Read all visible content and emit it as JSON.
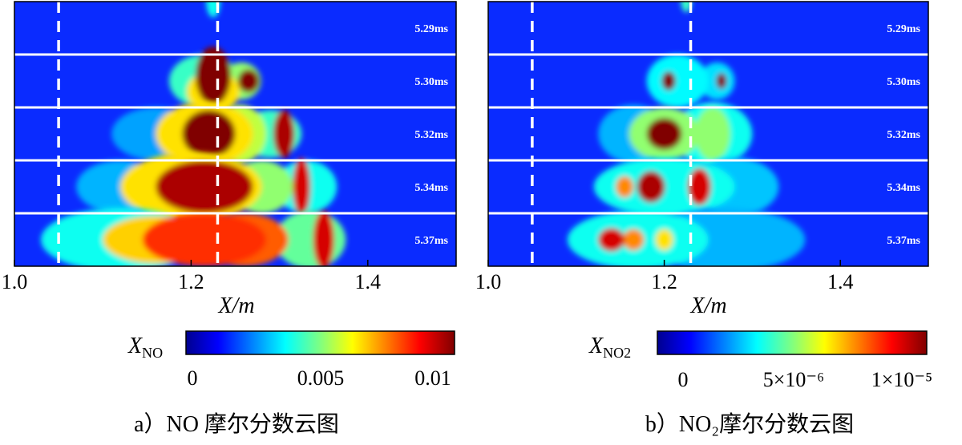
{
  "figure": {
    "caption_a": "a）NO 摩尔分数云图"
  },
  "chart_data": [
    {
      "type": "heatmap",
      "panel": "a",
      "species": "NO",
      "caption": "a）NO 摩尔分数云图",
      "xlabel": "X/m",
      "xlim": [
        1.0,
        1.5
      ],
      "x_ticks": [
        "1.0",
        "1.2",
        "1.4"
      ],
      "x_tick_values": [
        1.0,
        1.2,
        1.4
      ],
      "colorbar": {
        "label": "X_NO",
        "label_main": "X",
        "label_sub": "NO",
        "min": 0,
        "max": 0.01,
        "ticks": [
          "0",
          "0.005",
          "0.01"
        ],
        "tick_values": [
          0,
          0.005,
          0.01
        ]
      },
      "time_labels": [
        "5.29ms",
        "5.30ms",
        "5.32ms",
        "5.34ms",
        "5.37ms"
      ],
      "marker_lines_x": [
        1.05,
        1.23
      ],
      "blobs": [
        [
          {
            "x": 1.225,
            "y": 0.0,
            "rx": 0.008,
            "ry": 0.3,
            "v": 0.3
          }
        ],
        [
          {
            "x": 1.225,
            "y": 0.4,
            "rx": 0.02,
            "ry": 0.55,
            "v": 1.0
          },
          {
            "x": 1.225,
            "y": 0.7,
            "rx": 0.03,
            "ry": 0.4,
            "v": 0.6
          },
          {
            "x": 1.265,
            "y": 0.5,
            "rx": 0.012,
            "ry": 0.22,
            "v": 1.0
          },
          {
            "x": 1.257,
            "y": 0.5,
            "rx": 0.022,
            "ry": 0.35,
            "v": 0.45
          },
          {
            "x": 1.215,
            "y": 0.5,
            "rx": 0.04,
            "ry": 0.5,
            "v": 0.35
          }
        ],
        [
          {
            "x": 1.22,
            "y": 0.5,
            "rx": 0.03,
            "ry": 0.45,
            "v": 1.0
          },
          {
            "x": 1.215,
            "y": 0.5,
            "rx": 0.055,
            "ry": 0.6,
            "v": 0.6
          },
          {
            "x": 1.255,
            "y": 0.5,
            "rx": 0.03,
            "ry": 0.55,
            "v": 0.5
          },
          {
            "x": 1.305,
            "y": 0.5,
            "rx": 0.012,
            "ry": 0.45,
            "v": 0.95
          },
          {
            "x": 1.29,
            "y": 0.5,
            "rx": 0.035,
            "ry": 0.45,
            "v": 0.35
          },
          {
            "x": 1.16,
            "y": 0.5,
            "rx": 0.05,
            "ry": 0.5,
            "v": 0.18
          }
        ],
        [
          {
            "x": 1.215,
            "y": 0.5,
            "rx": 0.055,
            "ry": 0.5,
            "v": 0.95
          },
          {
            "x": 1.2,
            "y": 0.5,
            "rx": 0.08,
            "ry": 0.65,
            "v": 0.6
          },
          {
            "x": 1.28,
            "y": 0.5,
            "rx": 0.035,
            "ry": 0.5,
            "v": 0.45
          },
          {
            "x": 1.325,
            "y": 0.5,
            "rx": 0.01,
            "ry": 0.55,
            "v": 0.9
          },
          {
            "x": 1.33,
            "y": 0.5,
            "rx": 0.035,
            "ry": 0.5,
            "v": 0.3
          },
          {
            "x": 1.12,
            "y": 0.5,
            "rx": 0.05,
            "ry": 0.5,
            "v": 0.2
          }
        ],
        [
          {
            "x": 1.215,
            "y": 0.5,
            "rx": 0.07,
            "ry": 0.5,
            "v": 0.8
          },
          {
            "x": 1.16,
            "y": 0.5,
            "rx": 0.06,
            "ry": 0.45,
            "v": 0.62
          },
          {
            "x": 1.26,
            "y": 0.5,
            "rx": 0.05,
            "ry": 0.5,
            "v": 0.75
          },
          {
            "x": 1.35,
            "y": 0.5,
            "rx": 0.012,
            "ry": 0.55,
            "v": 0.9
          },
          {
            "x": 1.335,
            "y": 0.5,
            "rx": 0.04,
            "ry": 0.55,
            "v": 0.4
          },
          {
            "x": 1.12,
            "y": 0.5,
            "rx": 0.09,
            "ry": 0.6,
            "v": 0.3
          }
        ]
      ]
    },
    {
      "type": "heatmap",
      "panel": "b",
      "species": "NO2",
      "caption": "b）NO₂摩尔分数云图",
      "xlabel": "X/m",
      "xlim": [
        1.0,
        1.5
      ],
      "x_ticks": [
        "1.0",
        "1.2",
        "1.4"
      ],
      "x_tick_values": [
        1.0,
        1.2,
        1.4
      ],
      "colorbar": {
        "label": "X_NO2",
        "label_main": "X",
        "label_sub": "NO2",
        "min": 0,
        "max": 1e-05,
        "ticks": [
          "0",
          "5×10⁻⁶",
          "1×10⁻⁵"
        ],
        "tick_values": [
          0,
          5e-06,
          1e-05
        ]
      },
      "time_labels": [
        "5.29ms",
        "5.30ms",
        "5.32ms",
        "5.34ms",
        "5.37ms"
      ],
      "marker_lines_x": [
        1.05,
        1.23
      ],
      "blobs": [
        [
          {
            "x": 1.225,
            "y": 0.0,
            "rx": 0.006,
            "ry": 0.2,
            "v": 0.35
          }
        ],
        [
          {
            "x": 1.205,
            "y": 0.5,
            "rx": 0.008,
            "ry": 0.18,
            "v": 1.0
          },
          {
            "x": 1.265,
            "y": 0.5,
            "rx": 0.006,
            "ry": 0.15,
            "v": 1.0
          },
          {
            "x": 1.215,
            "y": 0.5,
            "rx": 0.035,
            "ry": 0.5,
            "v": 0.28
          },
          {
            "x": 1.26,
            "y": 0.5,
            "rx": 0.02,
            "ry": 0.35,
            "v": 0.25
          }
        ],
        [
          {
            "x": 1.2,
            "y": 0.5,
            "rx": 0.02,
            "ry": 0.3,
            "v": 1.0
          },
          {
            "x": 1.2,
            "y": 0.5,
            "rx": 0.04,
            "ry": 0.5,
            "v": 0.45
          },
          {
            "x": 1.255,
            "y": 0.5,
            "rx": 0.02,
            "ry": 0.5,
            "v": 0.45
          },
          {
            "x": 1.255,
            "y": 0.5,
            "rx": 0.045,
            "ry": 0.6,
            "v": 0.3
          },
          {
            "x": 1.165,
            "y": 0.5,
            "rx": 0.04,
            "ry": 0.55,
            "v": 0.2
          }
        ],
        [
          {
            "x": 1.185,
            "y": 0.5,
            "rx": 0.016,
            "ry": 0.3,
            "v": 0.95
          },
          {
            "x": 1.155,
            "y": 0.5,
            "rx": 0.01,
            "ry": 0.2,
            "v": 0.7
          },
          {
            "x": 1.24,
            "y": 0.5,
            "rx": 0.013,
            "ry": 0.35,
            "v": 0.9
          },
          {
            "x": 1.2,
            "y": 0.5,
            "rx": 0.08,
            "ry": 0.55,
            "v": 0.3
          },
          {
            "x": 1.28,
            "y": 0.5,
            "rx": 0.05,
            "ry": 0.55,
            "v": 0.22
          }
        ],
        [
          {
            "x": 1.14,
            "y": 0.5,
            "rx": 0.015,
            "ry": 0.22,
            "v": 0.9
          },
          {
            "x": 1.165,
            "y": 0.5,
            "rx": 0.012,
            "ry": 0.2,
            "v": 0.7
          },
          {
            "x": 1.2,
            "y": 0.5,
            "rx": 0.01,
            "ry": 0.2,
            "v": 0.6
          },
          {
            "x": 1.17,
            "y": 0.5,
            "rx": 0.08,
            "ry": 0.55,
            "v": 0.3
          },
          {
            "x": 1.27,
            "y": 0.5,
            "rx": 0.09,
            "ry": 0.6,
            "v": 0.2
          }
        ]
      ]
    }
  ]
}
